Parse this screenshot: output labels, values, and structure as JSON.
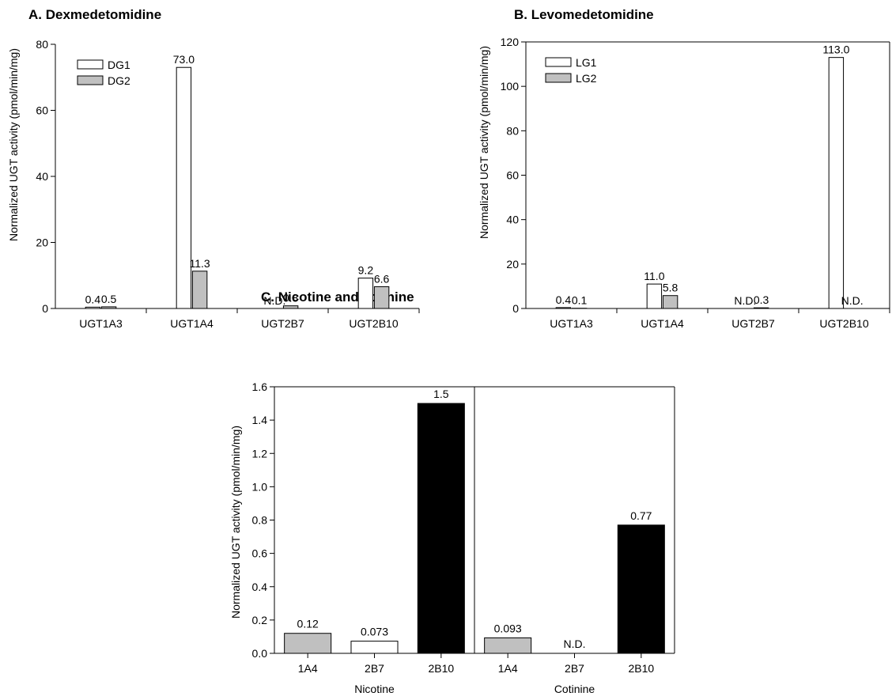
{
  "chart_data": [
    {
      "type": "bar",
      "title": "A. Dexmedetomidine",
      "ylabel": "Normalized UGT activity (pmol/min/mg)",
      "xlabel": "",
      "ylim": [
        0,
        80
      ],
      "yticks": [
        0,
        20,
        40,
        60,
        80
      ],
      "ytick_labels": [
        "0",
        "20",
        "40",
        "60",
        "80"
      ],
      "categories": [
        "UGT1A3",
        "UGT1A4",
        "UGT2B7",
        "UGT2B10"
      ],
      "legend_position": "top-left",
      "series": [
        {
          "name": "DG1",
          "color": "#ffffff",
          "values": [
            0.4,
            73.0,
            null,
            9.2
          ],
          "labels": [
            "0.4",
            "73.0",
            "N.D.",
            "9.2"
          ]
        },
        {
          "name": "DG2",
          "color": "#c0c0c0",
          "values": [
            0.5,
            11.3,
            0.8,
            6.6
          ],
          "labels": [
            "0.5",
            "11.3",
            "0.8",
            "6.6"
          ]
        }
      ]
    },
    {
      "type": "bar",
      "title": "B. Levomedetomidine",
      "ylabel": "Normalized UGT activity (pmol/min/mg)",
      "xlabel": "",
      "ylim": [
        0,
        120
      ],
      "yticks": [
        0,
        20,
        40,
        60,
        80,
        100,
        120
      ],
      "ytick_labels": [
        "0",
        "20",
        "40",
        "60",
        "80",
        "100",
        "120"
      ],
      "categories": [
        "UGT1A3",
        "UGT1A4",
        "UGT2B7",
        "UGT2B10"
      ],
      "legend_position": "top-left",
      "series": [
        {
          "name": "LG1",
          "color": "#ffffff",
          "values": [
            0.4,
            11.0,
            null,
            113.0
          ],
          "labels": [
            "0.4",
            "11.0",
            "N.D.",
            "113.0"
          ]
        },
        {
          "name": "LG2",
          "color": "#c0c0c0",
          "values": [
            0.1,
            5.8,
            0.3,
            null
          ],
          "labels": [
            "0.1",
            "5.8",
            "0.3",
            "N.D."
          ]
        }
      ]
    },
    {
      "type": "bar",
      "title": "C. Nicotine and cotinine",
      "ylabel": "Normalized UGT activity (pmol/min/mg)",
      "xlabel": "",
      "ylim": [
        0,
        1.6
      ],
      "yticks": [
        0,
        0.2,
        0.4,
        0.6,
        0.8,
        1.0,
        1.2,
        1.4,
        1.6
      ],
      "ytick_labels": [
        "0.0",
        "0.2",
        "0.4",
        "0.6",
        "0.8",
        "1.0",
        "1.2",
        "1.4",
        "1.6"
      ],
      "groups": [
        {
          "name": "Nicotine",
          "categories": [
            "1A4",
            "2B7",
            "2B10"
          ],
          "values": [
            0.12,
            0.073,
            1.5
          ],
          "labels": [
            "0.12",
            "0.073",
            "1.5"
          ],
          "colors": [
            "#c0c0c0",
            "#ffffff",
            "#000000"
          ]
        },
        {
          "name": "Cotinine",
          "categories": [
            "1A4",
            "2B7",
            "2B10"
          ],
          "values": [
            0.093,
            null,
            0.77
          ],
          "labels": [
            "0.093",
            "N.D.",
            "0.77"
          ],
          "colors": [
            "#c0c0c0",
            "#ffffff",
            "#000000"
          ]
        }
      ]
    }
  ]
}
